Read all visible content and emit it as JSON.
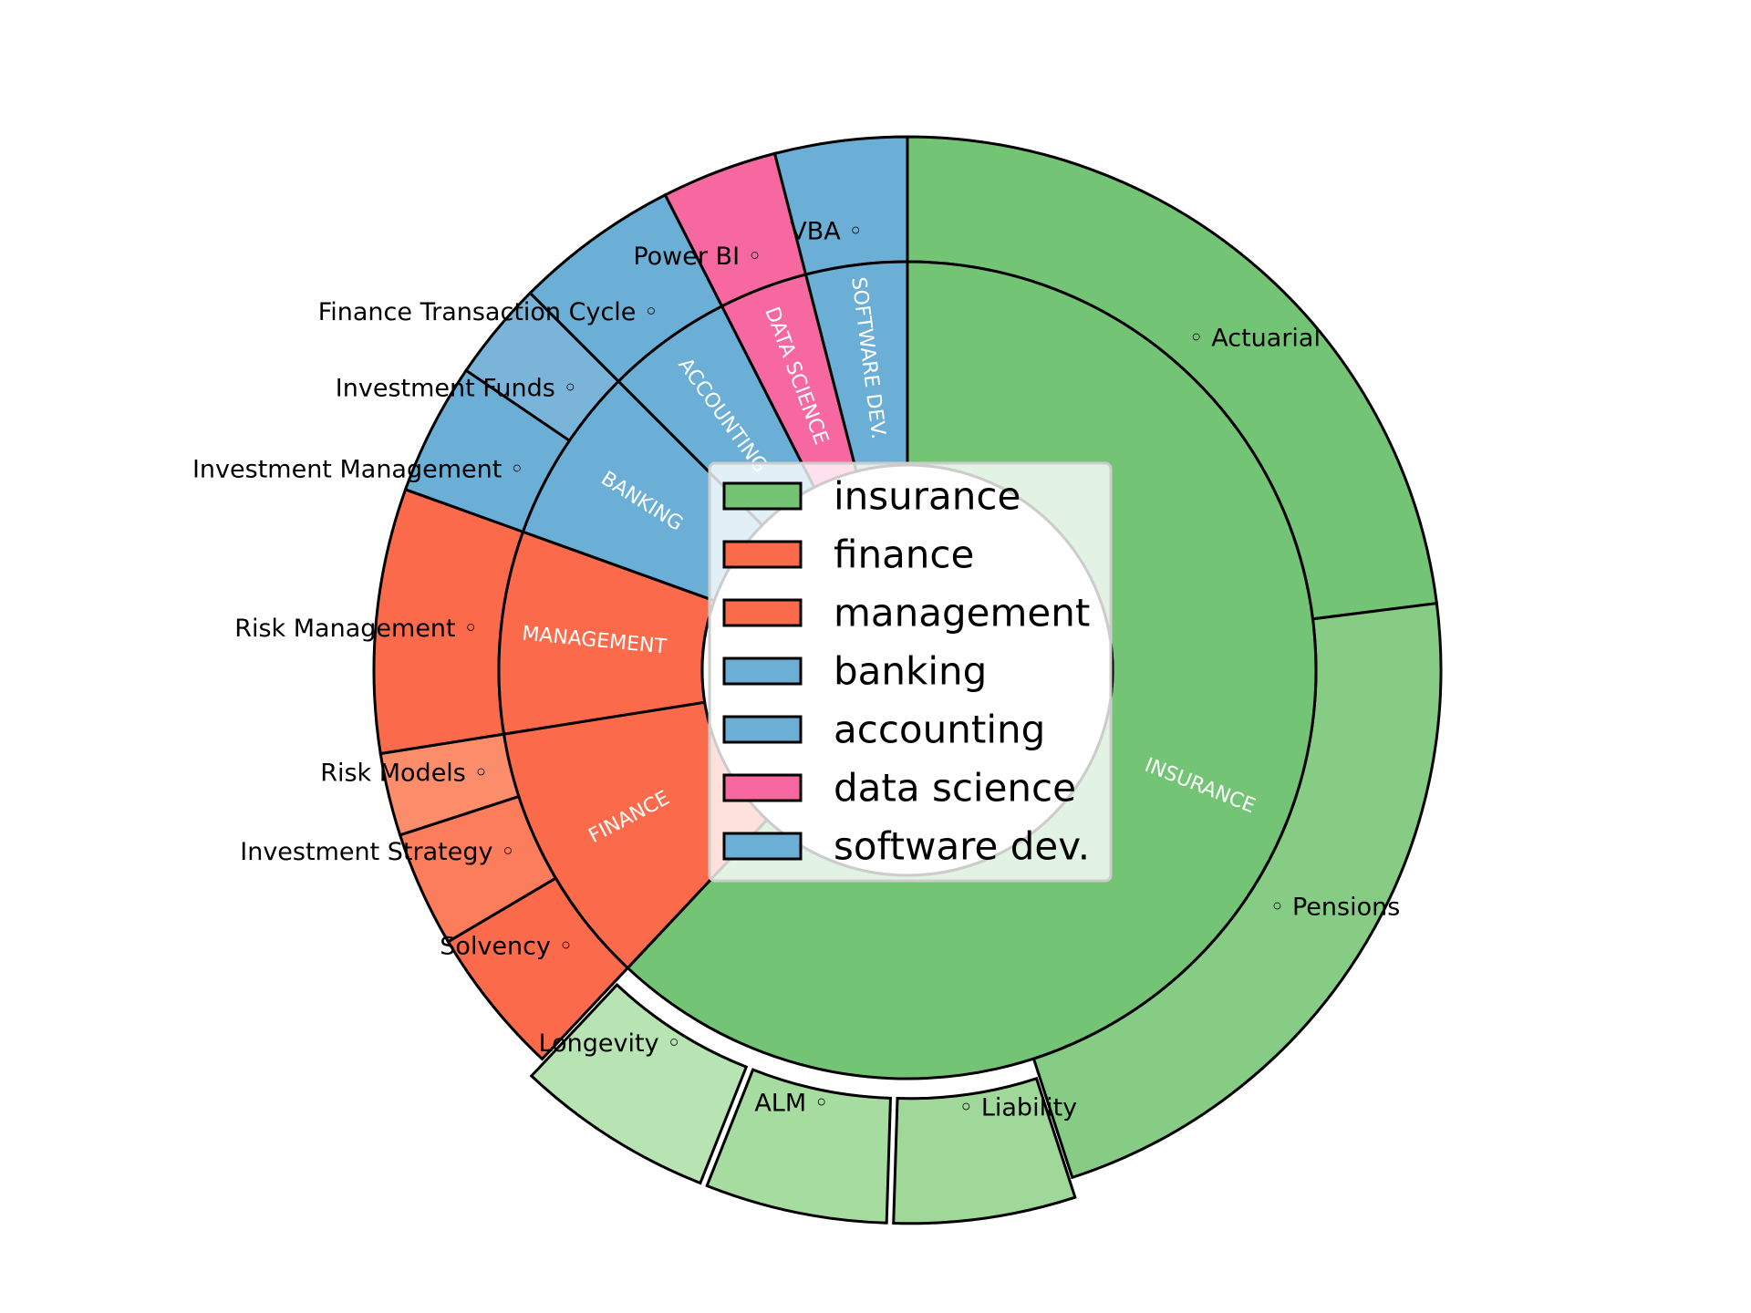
{
  "chart_data": {
    "type": "pie",
    "subtype": "nested-donut",
    "inner": [
      {
        "label": "INSURANCE",
        "value": 62,
        "color": "#74c476"
      },
      {
        "label": "FINANCE",
        "value": 10.5,
        "color": "#fb6a4a"
      },
      {
        "label": "MANAGEMENT",
        "value": 8,
        "color": "#fb6a4a"
      },
      {
        "label": "BANKING",
        "value": 7,
        "color": "#6baed6"
      },
      {
        "label": "ACCOUNTING",
        "value": 5,
        "color": "#6baed6"
      },
      {
        "label": "DATA SCIENCE",
        "value": 3.5,
        "color": "#f768a1"
      },
      {
        "label": "SOFTWARE DEV.",
        "value": 4,
        "color": "#6baed6"
      }
    ],
    "outer": [
      {
        "label": "Actuarial",
        "value": 23,
        "color": "#74c476",
        "group": "INSURANCE"
      },
      {
        "label": "Pensions",
        "value": 22,
        "color": "#86cc85",
        "group": "INSURANCE"
      },
      {
        "label": "Liability",
        "value": 5.5,
        "color": "#9fd898",
        "group": "INSURANCE",
        "exploded": true
      },
      {
        "label": "ALM",
        "value": 5.5,
        "color": "#a6dc9f",
        "group": "INSURANCE",
        "exploded": true
      },
      {
        "label": "Longevity",
        "value": 6,
        "color": "#b8e3b2",
        "group": "INSURANCE",
        "exploded": true
      },
      {
        "label": "Solvency",
        "value": 4.5,
        "color": "#fb6a4a",
        "group": "FINANCE"
      },
      {
        "label": "Investment Strategy",
        "value": 3.5,
        "color": "#fc7d5c",
        "group": "FINANCE"
      },
      {
        "label": "Risk Models",
        "value": 2.5,
        "color": "#fc8d6b",
        "group": "FINANCE"
      },
      {
        "label": "Risk Management",
        "value": 8,
        "color": "#fb6a4a",
        "group": "MANAGEMENT"
      },
      {
        "label": "Investment Management",
        "value": 4,
        "color": "#6baed6",
        "group": "BANKING"
      },
      {
        "label": "Investment Funds",
        "value": 3,
        "color": "#7ab5d9",
        "group": "BANKING"
      },
      {
        "label": "Finance Transaction Cycle",
        "value": 5,
        "color": "#6baed6",
        "group": "ACCOUNTING"
      },
      {
        "label": "Power BI",
        "value": 3.5,
        "color": "#f768a1",
        "group": "DATA SCIENCE"
      },
      {
        "label": "VBA",
        "value": 4,
        "color": "#6baed6",
        "group": "SOFTWARE DEV."
      }
    ],
    "legend": [
      {
        "label": "insurance",
        "color": "#74c476"
      },
      {
        "label": "finance",
        "color": "#fb6a4a"
      },
      {
        "label": "management",
        "color": "#fb6a4a"
      },
      {
        "label": "banking",
        "color": "#6baed6"
      },
      {
        "label": "accounting",
        "color": "#6baed6"
      },
      {
        "label": "data science",
        "color": "#f768a1"
      },
      {
        "label": "software dev.",
        "color": "#6baed6"
      }
    ],
    "legend_position": "center",
    "title": ""
  }
}
